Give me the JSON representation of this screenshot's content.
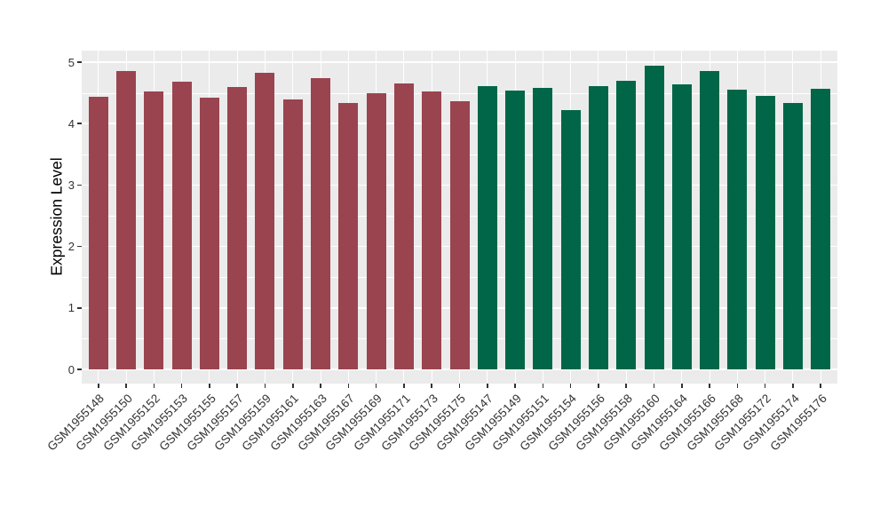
{
  "figure": {
    "background_color": "#FFFFFF",
    "panel_background_color": "#EBEBEB",
    "grid_color": "#FFFFFF",
    "axis_text_color": "#333333",
    "axis_title_color": "#000000"
  },
  "chart_data": {
    "type": "bar",
    "title": "",
    "xlabel": "",
    "ylabel": "Expression Level",
    "ylim": [
      0,
      5.2
    ],
    "yticks": [
      0,
      1,
      2,
      3,
      4,
      5
    ],
    "yticks_minor": [
      0.5,
      1.5,
      2.5,
      3.5,
      4.5
    ],
    "grid": "white major and minor horizontal gridlines plus vertical gridline at each category, on grey panel",
    "legend_position": "none",
    "bar_group_colors": {
      "group_1": "#9A4450",
      "group_2": "#006647"
    },
    "series": [
      {
        "name": "group_1",
        "color": "#9A4450",
        "categories": [
          "GSM1955148",
          "GSM1955150",
          "GSM1955152",
          "GSM1955153",
          "GSM1955155",
          "GSM1955157",
          "GSM1955159",
          "GSM1955161",
          "GSM1955163",
          "GSM1955167",
          "GSM1955169",
          "GSM1955171",
          "GSM1955173",
          "GSM1955175"
        ],
        "values": [
          4.43,
          4.86,
          4.52,
          4.68,
          4.42,
          4.59,
          4.83,
          4.39,
          4.74,
          4.34,
          4.5,
          4.66,
          4.52,
          4.37
        ]
      },
      {
        "name": "group_2",
        "color": "#006647",
        "categories": [
          "GSM1955147",
          "GSM1955149",
          "GSM1955151",
          "GSM1955154",
          "GSM1955156",
          "GSM1955158",
          "GSM1955160",
          "GSM1955164",
          "GSM1955166",
          "GSM1955168",
          "GSM1955172",
          "GSM1955174",
          "GSM1955176"
        ],
        "values": [
          4.61,
          4.54,
          4.58,
          4.22,
          4.61,
          4.7,
          4.94,
          4.64,
          4.85,
          4.55,
          4.45,
          4.33,
          4.56
        ]
      }
    ]
  }
}
